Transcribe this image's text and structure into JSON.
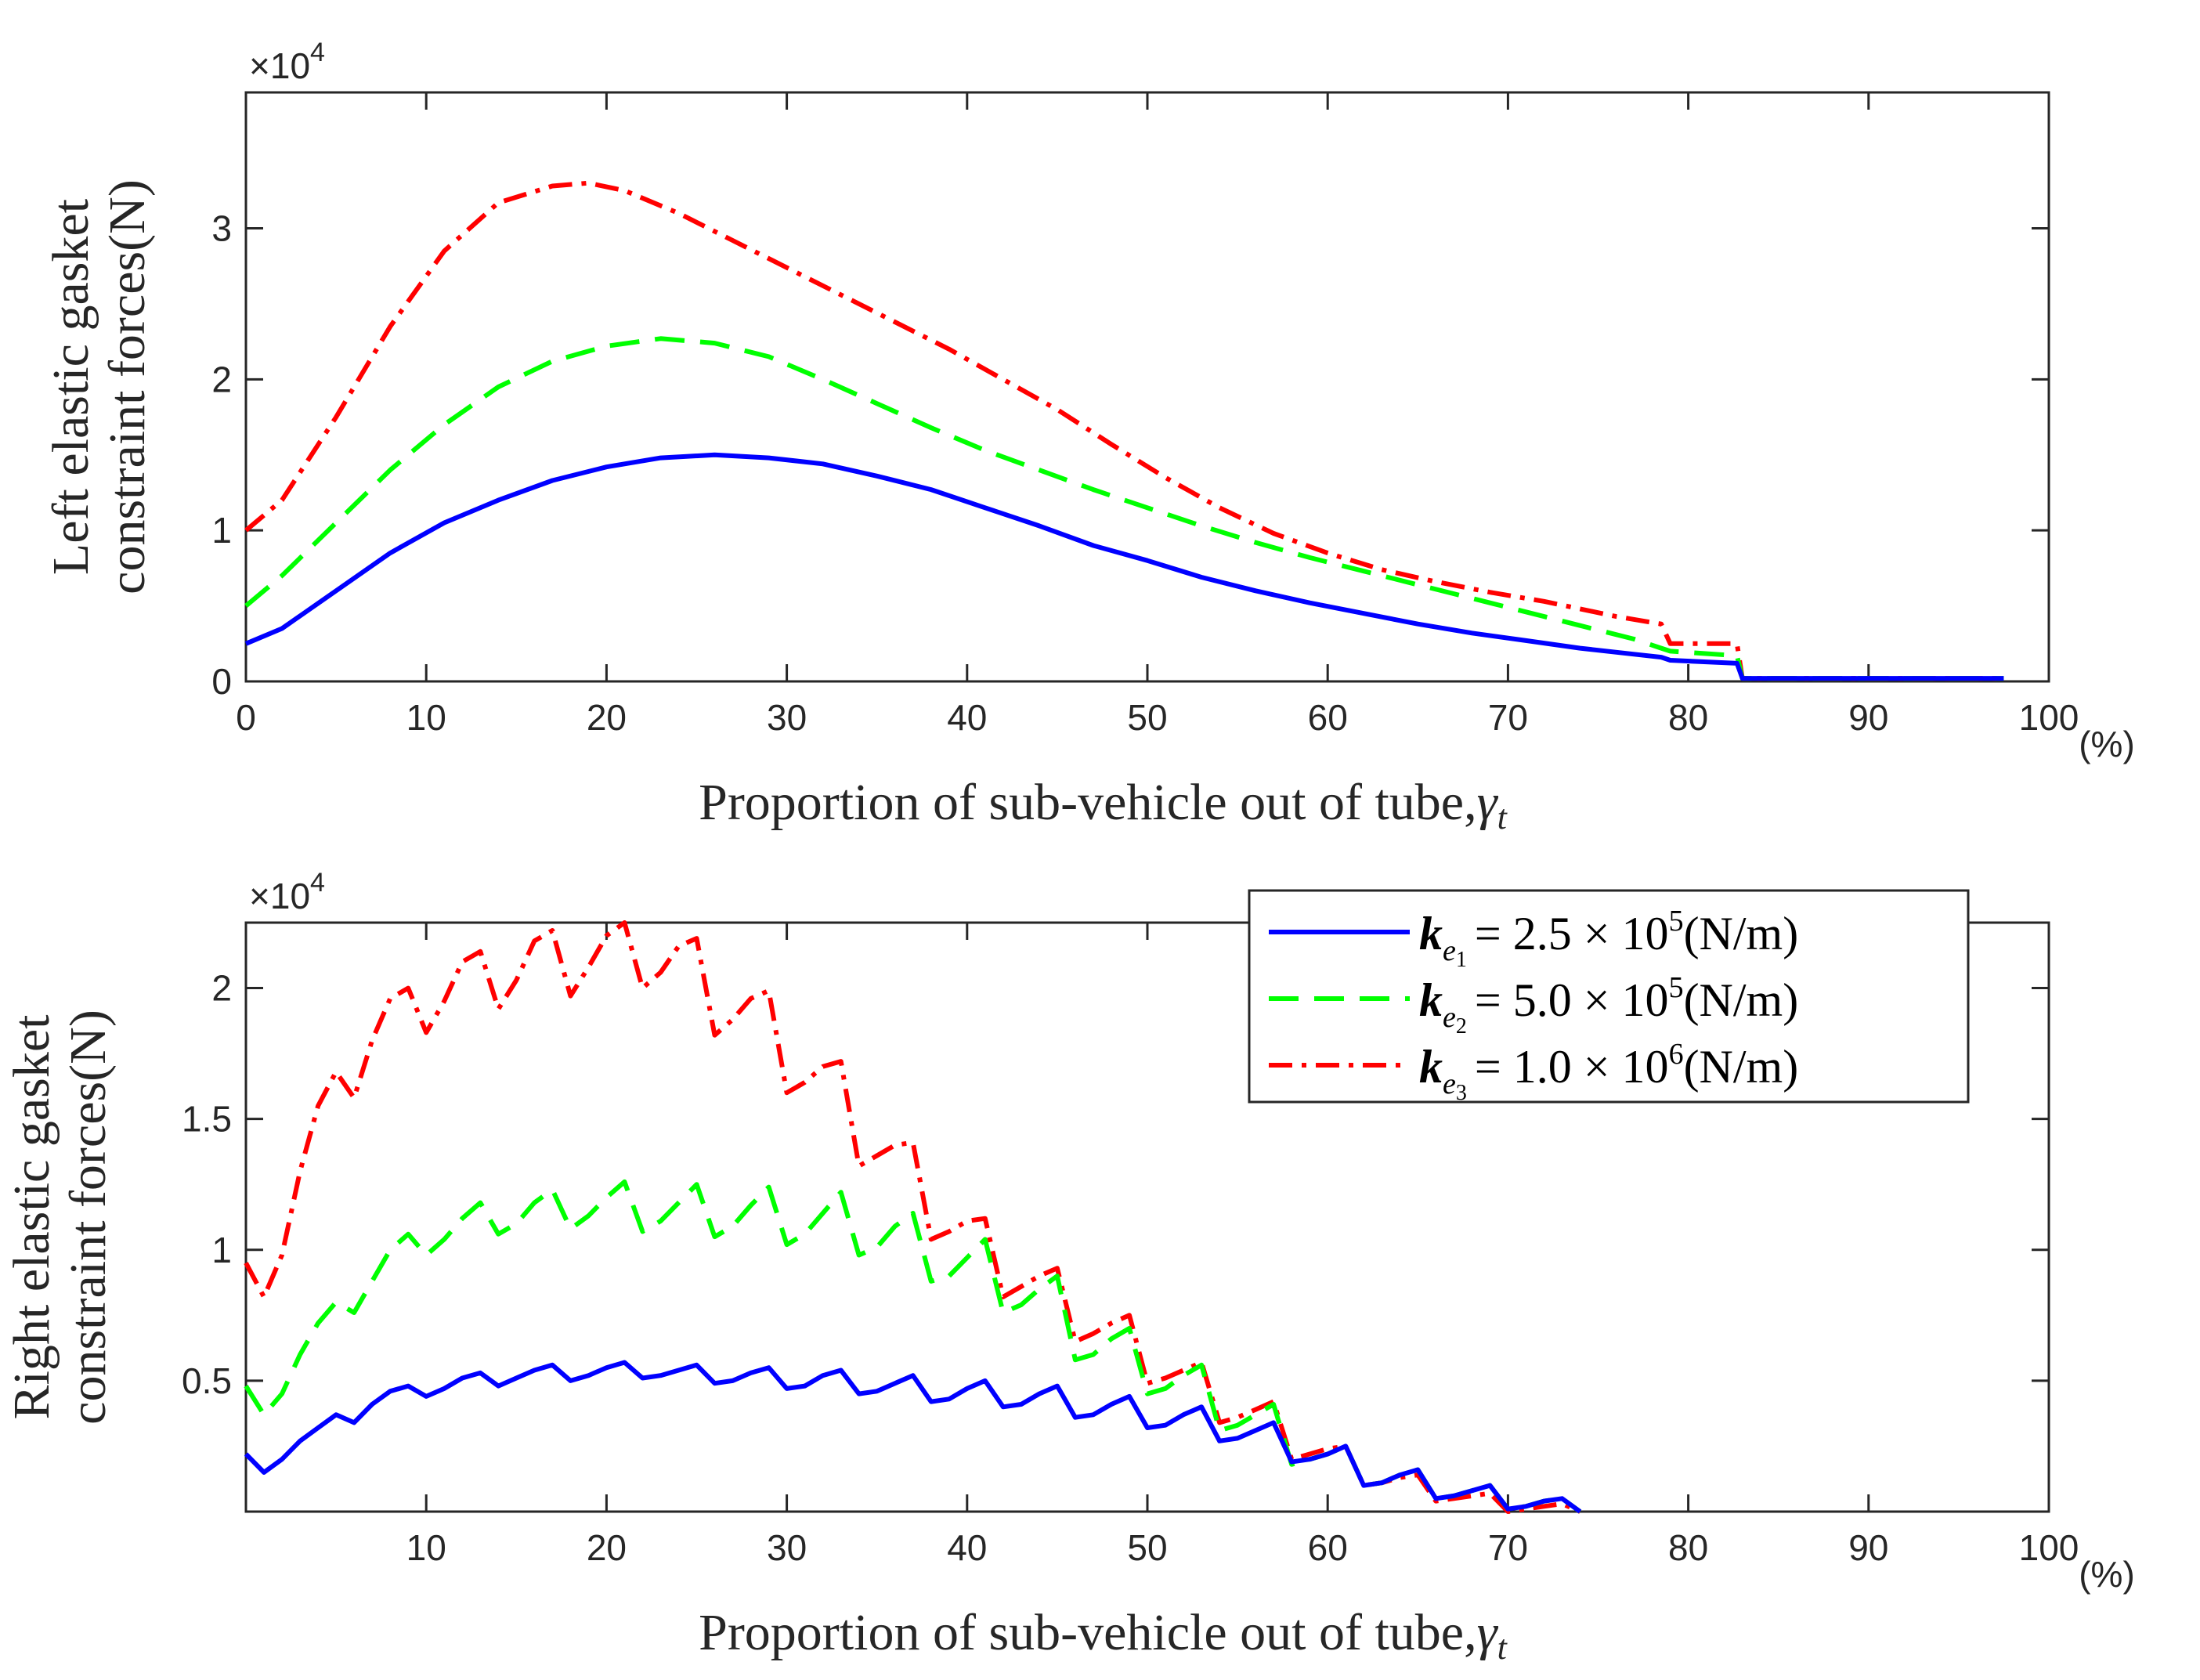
{
  "colors": {
    "blue": "#0000ff",
    "green": "#00ff00",
    "red": "#ff0000",
    "axis": "#262626"
  },
  "chart_data": [
    {
      "type": "line",
      "title": "",
      "xlabel": "Proportion of sub-vehicle out of tube,",
      "xlabel_symbol": "γ",
      "xlabel_subscript": "t",
      "ylabel_line1": "Left elastic gasket",
      "ylabel_line2": "constraint forces(N)",
      "x_unit": "(%)",
      "y_exponent_base": "×10",
      "y_exponent_power": "4",
      "xlim": [
        0,
        100
      ],
      "ylim": [
        0,
        3.9
      ],
      "xticks": [
        0,
        10,
        20,
        30,
        40,
        50,
        60,
        70,
        80,
        90,
        100
      ],
      "xtick_labels": [
        "0",
        "10",
        "20",
        "30",
        "40",
        "50",
        "60",
        "70",
        "80",
        "90",
        "100"
      ],
      "yticks": [
        0,
        1,
        2,
        3
      ],
      "ytick_labels": [
        "0",
        "1",
        "2",
        "3"
      ],
      "series": [
        {
          "name": "k_e1 = 2.5 × 10^5 (N/m)",
          "color": "#0000ff",
          "dash": "solid",
          "x": [
            0,
            2,
            5,
            8,
            11,
            14,
            17,
            20,
            23,
            26,
            29,
            32,
            35,
            38,
            41,
            44,
            47,
            50,
            53,
            56,
            59,
            62,
            65,
            68,
            71,
            74,
            77,
            78.5,
            79,
            82.7,
            83,
            97.5
          ],
          "y": [
            0.25,
            0.35,
            0.6,
            0.85,
            1.05,
            1.2,
            1.33,
            1.42,
            1.48,
            1.5,
            1.48,
            1.44,
            1.36,
            1.27,
            1.15,
            1.03,
            0.9,
            0.8,
            0.69,
            0.6,
            0.52,
            0.45,
            0.38,
            0.32,
            0.27,
            0.22,
            0.18,
            0.16,
            0.14,
            0.12,
            0.02,
            0.02
          ]
        },
        {
          "name": "k_e2 = 5.0 × 10^5 (N/m)",
          "color": "#00ff00",
          "dash": "dash",
          "x": [
            0,
            2,
            5,
            8,
            11,
            14,
            17,
            20,
            23,
            26,
            29,
            32,
            35,
            38,
            41,
            44,
            47,
            50,
            53,
            56,
            59,
            62,
            65,
            68,
            71,
            74,
            77,
            78.5,
            79,
            82.7,
            83,
            97.5
          ],
          "y": [
            0.5,
            0.7,
            1.05,
            1.4,
            1.7,
            1.95,
            2.12,
            2.22,
            2.27,
            2.24,
            2.15,
            2.0,
            1.84,
            1.68,
            1.53,
            1.4,
            1.27,
            1.15,
            1.03,
            0.92,
            0.82,
            0.73,
            0.64,
            0.55,
            0.46,
            0.37,
            0.28,
            0.22,
            0.2,
            0.17,
            0.02,
            0.02
          ]
        },
        {
          "name": "k_e3 = 1.0 × 10^6 (N/m)",
          "color": "#ff0000",
          "dash": "dashdot",
          "x": [
            0,
            2,
            5,
            8,
            11,
            14,
            17,
            19,
            21,
            24,
            27,
            30,
            33,
            36,
            39,
            42,
            45,
            48,
            51,
            54,
            57,
            60,
            63,
            66,
            69,
            72,
            74,
            76,
            78,
            78.5,
            79,
            82.7,
            83,
            97.5
          ],
          "y": [
            1.0,
            1.2,
            1.75,
            2.35,
            2.85,
            3.17,
            3.28,
            3.3,
            3.25,
            3.1,
            2.92,
            2.74,
            2.56,
            2.38,
            2.2,
            2.0,
            1.8,
            1.57,
            1.35,
            1.15,
            0.98,
            0.85,
            0.74,
            0.66,
            0.59,
            0.53,
            0.48,
            0.43,
            0.39,
            0.38,
            0.25,
            0.25,
            0.02,
            0.02
          ]
        }
      ]
    },
    {
      "type": "line",
      "title": "",
      "xlabel": "Proportion of sub-vehicle out of tube,",
      "xlabel_symbol": "γ",
      "xlabel_subscript": "t",
      "ylabel_line1": "Right elastic gasket",
      "ylabel_line2": "constraint forces(N)",
      "x_unit": "(%)",
      "y_exponent_base": "×10",
      "y_exponent_power": "4",
      "xlim": [
        0,
        100
      ],
      "ylim": [
        0,
        2.25
      ],
      "xticks": [
        10,
        20,
        30,
        40,
        50,
        60,
        70,
        80,
        90,
        100
      ],
      "xtick_labels": [
        "10",
        "20",
        "30",
        "40",
        "50",
        "60",
        "70",
        "80",
        "90",
        "100"
      ],
      "yticks": [
        0.5,
        1,
        1.5,
        2
      ],
      "ytick_labels": [
        "0.5",
        "1",
        "1.5",
        "2"
      ],
      "legend_location": "top-right",
      "series": [
        {
          "name": "k_e1 = 2.5 × 10^5 (N/m)",
          "color": "#0000ff",
          "dash": "solid",
          "x": [
            0,
            1,
            2,
            3,
            4,
            5,
            6,
            7,
            8,
            9,
            10,
            11,
            12,
            13,
            14,
            15,
            16,
            17,
            18,
            19,
            20,
            21,
            22,
            23,
            24,
            25,
            26,
            27,
            28,
            29,
            30,
            31,
            32,
            33,
            34,
            35,
            36,
            37,
            38,
            39,
            40,
            41,
            42,
            43,
            44,
            45,
            46,
            47,
            48,
            49,
            50,
            51,
            52,
            53,
            54,
            55,
            56,
            57,
            58,
            59,
            60,
            61,
            62,
            63,
            64,
            65,
            66,
            67,
            68,
            69,
            70,
            71,
            72,
            73,
            74
          ],
          "y": [
            0.22,
            0.15,
            0.2,
            0.27,
            0.32,
            0.37,
            0.34,
            0.41,
            0.46,
            0.48,
            0.44,
            0.47,
            0.51,
            0.53,
            0.48,
            0.51,
            0.54,
            0.56,
            0.5,
            0.52,
            0.55,
            0.57,
            0.51,
            0.52,
            0.54,
            0.56,
            0.49,
            0.5,
            0.53,
            0.55,
            0.47,
            0.48,
            0.52,
            0.54,
            0.45,
            0.46,
            0.49,
            0.52,
            0.42,
            0.43,
            0.47,
            0.5,
            0.4,
            0.41,
            0.45,
            0.48,
            0.36,
            0.37,
            0.41,
            0.44,
            0.32,
            0.33,
            0.37,
            0.4,
            0.27,
            0.28,
            0.31,
            0.34,
            0.19,
            0.2,
            0.22,
            0.25,
            0.1,
            0.11,
            0.14,
            0.16,
            0.05,
            0.06,
            0.08,
            0.1,
            0.01,
            0.02,
            0.04,
            0.05,
            0.0
          ]
        },
        {
          "name": "k_e2 = 5.0 × 10^5 (N/m)",
          "color": "#00ff00",
          "dash": "dash",
          "x": [
            0,
            1,
            2,
            3,
            4,
            5,
            6,
            7,
            8,
            9,
            10,
            11,
            12,
            13,
            14,
            15,
            16,
            17,
            18,
            19,
            20,
            21,
            22,
            23,
            24,
            25,
            26,
            27,
            28,
            29,
            30,
            31,
            32,
            33,
            34,
            35,
            36,
            37,
            38,
            39,
            40,
            41,
            42,
            43,
            44,
            45,
            46,
            47,
            48,
            49,
            50,
            51,
            52,
            53,
            54,
            55,
            56,
            57,
            58,
            59,
            60,
            61,
            62,
            63,
            64,
            65,
            66,
            67,
            68,
            69,
            70,
            71,
            72,
            73,
            74
          ],
          "y": [
            0.48,
            0.37,
            0.45,
            0.6,
            0.72,
            0.8,
            0.76,
            0.88,
            1.0,
            1.06,
            0.98,
            1.04,
            1.12,
            1.18,
            1.06,
            1.1,
            1.18,
            1.23,
            1.08,
            1.13,
            1.2,
            1.26,
            1.07,
            1.11,
            1.18,
            1.25,
            1.05,
            1.09,
            1.17,
            1.24,
            1.02,
            1.06,
            1.14,
            1.22,
            0.98,
            1.01,
            1.09,
            1.14,
            0.88,
            0.9,
            0.97,
            1.04,
            0.76,
            0.79,
            0.85,
            0.9,
            0.58,
            0.6,
            0.66,
            0.7,
            0.45,
            0.47,
            0.52,
            0.56,
            0.31,
            0.33,
            0.37,
            0.41,
            0.18,
            0.2,
            0.22,
            0.25,
            0.1,
            0.11,
            0.14,
            0.16,
            0.05,
            0.06,
            0.08,
            0.1,
            0.01,
            0.02,
            0.04,
            0.05,
            0.0
          ]
        },
        {
          "name": "k_e3 = 1.0 × 10^6 (N/m)",
          "color": "#ff0000",
          "dash": "dashdot",
          "x": [
            0,
            1,
            2,
            3,
            4,
            5,
            6,
            7,
            8,
            9,
            10,
            11,
            12,
            13,
            14,
            15,
            16,
            17,
            18,
            19,
            20,
            21,
            22,
            23,
            24,
            25,
            26,
            27,
            28,
            29,
            30,
            31,
            32,
            33,
            34,
            35,
            36,
            37,
            38,
            39,
            40,
            41,
            42,
            43,
            44,
            45,
            46,
            47,
            48,
            49,
            50,
            51,
            52,
            53,
            54,
            55,
            56,
            57,
            58,
            59,
            60,
            61,
            62,
            63,
            64,
            65,
            66,
            67,
            68,
            69,
            70,
            71,
            72,
            73,
            74
          ],
          "y": [
            0.95,
            0.82,
            0.98,
            1.3,
            1.55,
            1.68,
            1.58,
            1.8,
            1.96,
            2.0,
            1.83,
            1.95,
            2.1,
            2.14,
            1.92,
            2.03,
            2.18,
            2.22,
            1.97,
            2.08,
            2.2,
            2.25,
            2.0,
            2.06,
            2.16,
            2.19,
            1.82,
            1.88,
            1.96,
            1.99,
            1.6,
            1.64,
            1.7,
            1.72,
            1.32,
            1.36,
            1.4,
            1.41,
            1.04,
            1.07,
            1.11,
            1.12,
            0.82,
            0.86,
            0.9,
            0.93,
            0.65,
            0.68,
            0.72,
            0.75,
            0.49,
            0.51,
            0.54,
            0.57,
            0.34,
            0.36,
            0.39,
            0.42,
            0.2,
            0.22,
            0.24,
            0.25,
            0.1,
            0.11,
            0.13,
            0.14,
            0.04,
            0.05,
            0.06,
            0.07,
            0.0,
            0.01,
            0.02,
            0.03,
            0.0
          ]
        }
      ]
    }
  ],
  "legend": {
    "entries": [
      {
        "symbol": "k",
        "sub": "e",
        "subsub": "1",
        "text": "= 2.5 × 10",
        "power": "5",
        "unit": "(N/m)"
      },
      {
        "symbol": "k",
        "sub": "e",
        "subsub": "2",
        "text": "= 5.0 × 10",
        "power": "5",
        "unit": "(N/m)"
      },
      {
        "symbol": "k",
        "sub": "e",
        "subsub": "3",
        "text": "= 1.0 × 10",
        "power": "6",
        "unit": "(N/m)"
      }
    ]
  }
}
